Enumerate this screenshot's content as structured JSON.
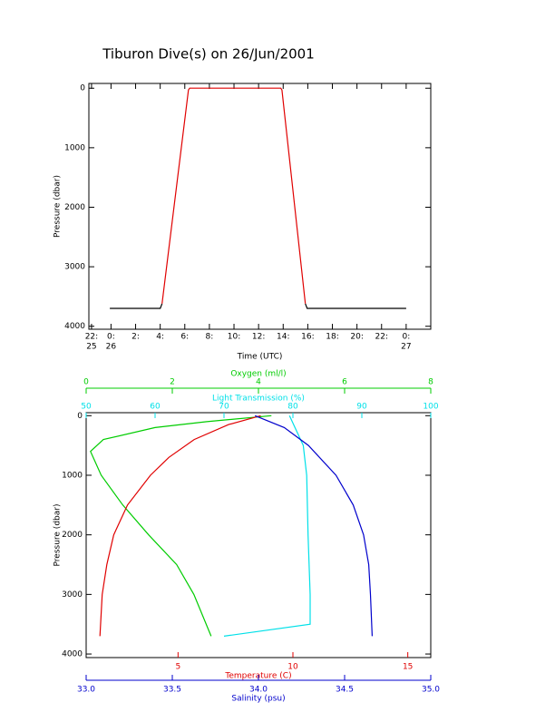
{
  "chart_data": [
    {
      "type": "line",
      "title": "Tiburon Dive(s) on 26/Jun/2001",
      "xlabel": "Time (UTC)",
      "ylabel": "Pressure (dbar)",
      "x": [
        -0.1,
        4.0,
        4.15,
        6.3,
        6.4,
        13.8,
        13.9,
        15.8,
        15.95,
        24.0
      ],
      "xlim": [
        -1.8,
        26.0
      ],
      "xticks": [
        {
          "value": -1.583,
          "label": [
            "22:",
            "25"
          ]
        },
        {
          "value": 0,
          "label": [
            "0:",
            "26"
          ]
        },
        {
          "value": 2,
          "label": [
            "2:"
          ]
        },
        {
          "value": 4,
          "label": [
            "4:"
          ]
        },
        {
          "value": 6,
          "label": [
            "6:"
          ]
        },
        {
          "value": 8,
          "label": [
            "8:"
          ]
        },
        {
          "value": 10,
          "label": [
            "10:"
          ]
        },
        {
          "value": 12,
          "label": [
            "12:"
          ]
        },
        {
          "value": 14,
          "label": [
            "14:"
          ]
        },
        {
          "value": 16,
          "label": [
            "16:"
          ]
        },
        {
          "value": 18,
          "label": [
            "18:"
          ]
        },
        {
          "value": 20,
          "label": [
            "20:"
          ]
        },
        {
          "value": 22,
          "label": [
            "22:"
          ]
        },
        {
          "value": 24,
          "label": [
            "0:",
            "27"
          ]
        }
      ],
      "ylim": [
        4050,
        -80
      ],
      "yticks": [
        0,
        1000,
        2000,
        3000,
        4000
      ],
      "series": [
        {
          "color": "#000000",
          "values": [
            3700,
            3700,
            3620,
            null,
            null,
            null,
            null,
            3620,
            3700,
            3700
          ]
        },
        {
          "color": "#e00000",
          "values": [
            null,
            null,
            3620,
            30,
            0,
            0,
            30,
            3620,
            null,
            null
          ]
        }
      ]
    },
    {
      "type": "profile",
      "ylabel": "Pressure (dbar)",
      "ylim": [
        4060,
        -50
      ],
      "yticks": [
        0,
        1000,
        2000,
        3000,
        4000
      ],
      "axes": [
        {
          "label": "Oxygen (ml/l)",
          "color": "#00cc00",
          "position": "top",
          "xlim": [
            0,
            8
          ],
          "xticks": [
            0,
            2,
            4,
            6,
            8
          ],
          "x": [
            4.3,
            2.8,
            1.6,
            0.4,
            0.1,
            0.35,
            0.85,
            1.45,
            2.1,
            2.5,
            2.9
          ],
          "values": [
            0,
            100,
            200,
            400,
            600,
            1000,
            1500,
            2000,
            2500,
            3000,
            3700
          ]
        },
        {
          "label": "Light Transmission (%)",
          "color": "#00e0e8",
          "position": "top",
          "xlim": [
            50,
            100
          ],
          "xticks": [
            50,
            60,
            70,
            80,
            90,
            100
          ],
          "x": [
            79.5,
            81.5,
            82,
            82.2,
            82.5,
            82.5,
            70
          ],
          "values": [
            0,
            500,
            1000,
            2000,
            3000,
            3500,
            3700
          ]
        },
        {
          "label": "Temperature (C)",
          "color": "#e00000",
          "position": "bottom",
          "xlim": [
            1,
            16
          ],
          "xticks": [
            5,
            10,
            15
          ],
          "x": [
            8.6,
            7.2,
            5.7,
            4.6,
            3.8,
            2.8,
            2.2,
            1.9,
            1.7,
            1.6
          ],
          "values": [
            0,
            150,
            400,
            700,
            1000,
            1500,
            2000,
            2500,
            3000,
            3700
          ]
        },
        {
          "label": "Salinity (psu)",
          "color": "#0000cc",
          "position": "bottom",
          "xlim": [
            33,
            35
          ],
          "xticks": [
            {
              "value": 33,
              "label": "33.0"
            },
            {
              "value": 33.5,
              "label": "33.5"
            },
            {
              "value": 34,
              "label": "34.0"
            },
            {
              "value": 34.5,
              "label": "34.5"
            },
            {
              "value": 35,
              "label": "35.0"
            }
          ],
          "x": [
            33.98,
            34.15,
            34.29,
            34.45,
            34.55,
            34.61,
            34.64,
            34.65,
            34.66
          ],
          "values": [
            0,
            200,
            500,
            1000,
            1500,
            2000,
            2500,
            3000,
            3700
          ]
        }
      ]
    }
  ]
}
